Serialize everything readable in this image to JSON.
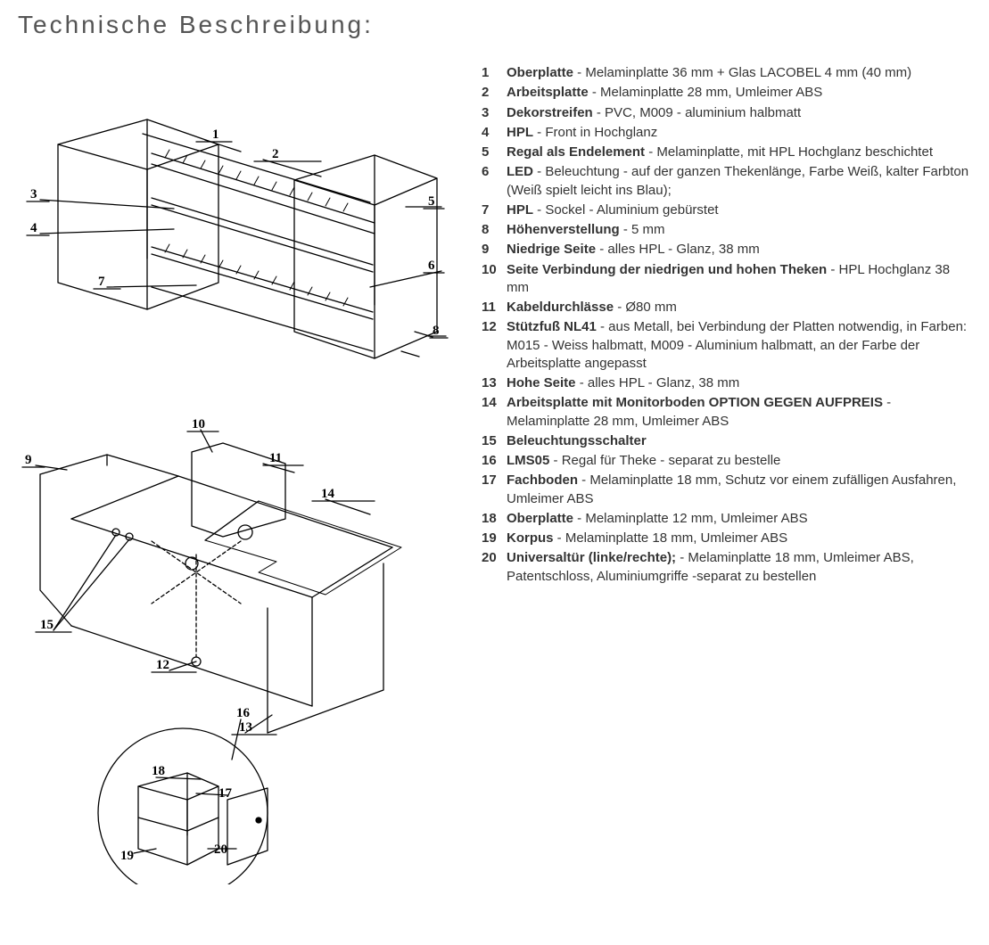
{
  "title": "Technische Beschreibung:",
  "diagram": {
    "stroke": "#000000",
    "stroke_width": 1.3,
    "label_fontsize": 15,
    "label_fontweight": "700",
    "labels_top": [
      "1",
      "2",
      "3",
      "4",
      "5",
      "6",
      "7",
      "8"
    ],
    "labels_mid": [
      "9",
      "10",
      "11",
      "12",
      "13",
      "14",
      "15"
    ],
    "labels_circle": [
      "16",
      "17",
      "18",
      "19",
      "20"
    ]
  },
  "specs": [
    {
      "n": "1",
      "name": "Oberplatte",
      "desc": " - Melaminplatte 36 mm + Glas LACOBEL 4 mm (40 mm)"
    },
    {
      "n": "2",
      "name": "Arbeitsplatte",
      "desc": " - Melaminplatte 28 mm, Umleimer ABS"
    },
    {
      "n": "3",
      "name": "Dekorstreifen",
      "desc": " - PVC, M009 - aluminium halbmatt"
    },
    {
      "n": "4",
      "name": "HPL",
      "desc": " - Front in Hochglanz"
    },
    {
      "n": "5",
      "name": "Regal als Endelement",
      "desc": " - Melaminplatte, mit HPL Hochglanz beschichtet"
    },
    {
      "n": "6",
      "name": "LED",
      "desc": " - Beleuchtung - auf der ganzen Thekenlänge, Farbe Weiß, kalter Farbton (Weiß spielt leicht ins Blau);"
    },
    {
      "n": "7",
      "name": "HPL",
      "desc": " - Sockel - Aluminium gebürstet"
    },
    {
      "n": "8",
      "name": "Höhenverstellung",
      "desc": " - 5 mm"
    },
    {
      "n": "9",
      "name": "Niedrige Seite",
      "desc": " - alles HPL - Glanz, 38 mm"
    },
    {
      "n": "10",
      "name": "Seite Verbindung der niedrigen und hohen Theken",
      "desc": " - HPL Hochglanz 38 mm"
    },
    {
      "n": "11",
      "name": "Kabeldurchlässe",
      "desc": " - Ø80 mm"
    },
    {
      "n": "12",
      "name": "Stützfuß NL41",
      "desc": " - aus Metall, bei Verbindung der Platten notwendig, in Farben: M015 - Weiss halbmatt, M009 - Aluminium halbmatt, an der Farbe der Arbeitsplatte angepasst"
    },
    {
      "n": "13",
      "name": "Hohe Seite",
      "desc": " - alles HPL - Glanz, 38 mm"
    },
    {
      "n": "14",
      "name": "Arbeitsplatte mit Monitorboden OPTION GEGEN AUFPREIS",
      "desc": " - Melaminplatte 28 mm, Umleimer ABS"
    },
    {
      "n": "15",
      "name": "Beleuchtungsschalter",
      "desc": ""
    },
    {
      "n": "16",
      "name": "LMS05",
      "desc": " - Regal für Theke - separat zu bestelle"
    },
    {
      "n": "17",
      "name": "Fachboden",
      "desc": " - Melaminplatte 18 mm, Schutz vor einem zufälligen Ausfahren, Umleimer ABS"
    },
    {
      "n": "18",
      "name": "Oberplatte",
      "desc": " - Melaminplatte 12 mm, Umleimer ABS"
    },
    {
      "n": "19",
      "name": "Korpus",
      "desc": " - Melaminplatte 18 mm, Umleimer ABS"
    },
    {
      "n": "20",
      "name": "Universaltür (linke/rechte);",
      "desc": " - Melaminplatte 18 mm, Umleimer ABS, Patentschloss, Aluminiumgriffe -separat zu bestellen"
    }
  ],
  "colors": {
    "text": "#333333",
    "title": "#555555",
    "bg": "#ffffff"
  }
}
